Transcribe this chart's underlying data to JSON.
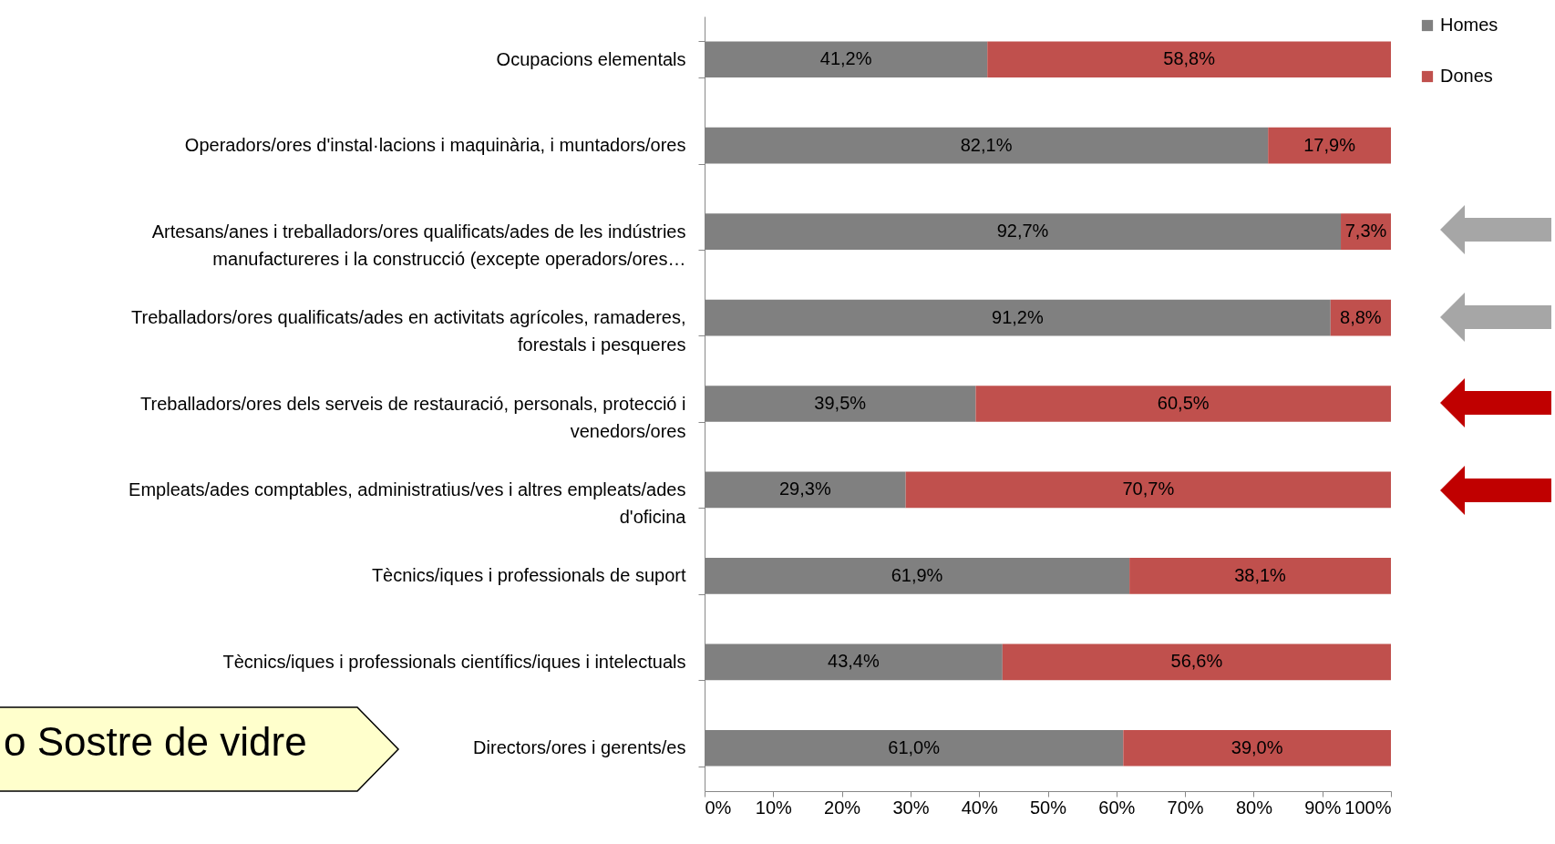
{
  "chart_data": {
    "type": "bar",
    "orientation": "horizontal",
    "stacked": true,
    "legend": "top right",
    "categories": [
      "Ocupacions elementals",
      "Operadors/ores d'instal·lacions i maquinària, i muntadors/ores",
      "Artesans/anes i treballadors/ores qualificats/ades de les indústries manufactureres i la construcció (excepte operadors/ores…",
      "Treballadors/ores qualificats/ades en activitats agrícoles, ramaderes, forestals i pesqueres",
      "Treballadors/ores dels serveis de restauració, personals, protecció i venedors/ores",
      "Empleats/ades comptables, administratius/ves i altres empleats/ades d'oficina",
      "Tècnics/iques i professionals de suport",
      "Tècnics/iques i professionals científics/iques i intelectuals",
      "Directors/ores i gerents/es"
    ],
    "series": [
      {
        "name": "Homes",
        "color": "#808080",
        "values": [
          41.2,
          82.1,
          92.7,
          91.2,
          39.5,
          29.3,
          61.9,
          43.4,
          61.0
        ],
        "value_labels": [
          "41,2%",
          "82,1%",
          "92,7%",
          "91,2%",
          "39,5%",
          "29,3%",
          "61,9%",
          "43,4%",
          "61,0%"
        ]
      },
      {
        "name": "Dones",
        "color": "#c0504d",
        "values": [
          58.8,
          17.9,
          7.3,
          8.8,
          60.5,
          70.7,
          38.1,
          56.6,
          39.0
        ],
        "value_labels": [
          "58,8%",
          "17,9%",
          "7,3%",
          "8,8%",
          "60,5%",
          "70,7%",
          "38,1%",
          "56,6%",
          "39,0%"
        ]
      }
    ],
    "xlim": [
      0,
      100
    ],
    "xticks": [
      {
        "value": 0,
        "label": "0%"
      },
      {
        "value": 10,
        "label": "10%"
      },
      {
        "value": 20,
        "label": "20%"
      },
      {
        "value": 30,
        "label": "30%"
      },
      {
        "value": 40,
        "label": "40%"
      },
      {
        "value": 50,
        "label": "50%"
      },
      {
        "value": 60,
        "label": "60%"
      },
      {
        "value": 70,
        "label": "70%"
      },
      {
        "value": 80,
        "label": "80%"
      },
      {
        "value": 90,
        "label": "90%"
      },
      {
        "value": 100,
        "label": "100%"
      }
    ],
    "annotations": [
      "o Sostre de vidre"
    ]
  }
}
